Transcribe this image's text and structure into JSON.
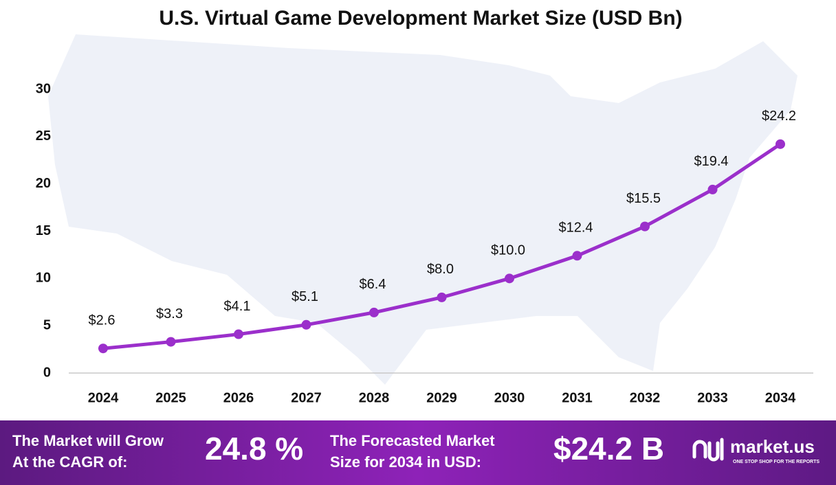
{
  "chart_data": {
    "type": "line",
    "title": "U.S. Virtual Game Development Market Size (USD Bn)",
    "categories": [
      "2024",
      "2025",
      "2026",
      "2027",
      "2028",
      "2029",
      "2030",
      "2031",
      "2032",
      "2033",
      "2034"
    ],
    "series": [
      {
        "color": "#9b2fcb",
        "values": [
          2.6,
          3.3,
          4.1,
          5.1,
          6.4,
          8.0,
          10.0,
          12.4,
          15.5,
          19.4,
          24.2
        ],
        "value_labels": [
          "$2.6",
          "$3.3",
          "$4.1",
          "$5.1",
          "$6.4",
          "$8.0",
          "$10.0",
          "$12.4",
          "$15.5",
          "$19.4",
          "$24.2"
        ]
      }
    ],
    "ylim": [
      0,
      30
    ],
    "yticks": [
      0,
      5,
      10,
      15,
      20,
      25,
      30
    ],
    "grid": false
  },
  "footer": {
    "cagr_text": [
      "The Market will Grow",
      "At the CAGR of:"
    ],
    "cagr_value": "24.8 %",
    "forecast_text": [
      "The Forecasted Market",
      "Size for 2034 in USD:"
    ],
    "forecast_value": "$24.2 B",
    "logo": {
      "name": "market.us",
      "tagline": "ONE STOP SHOP FOR THE REPORTS"
    }
  }
}
